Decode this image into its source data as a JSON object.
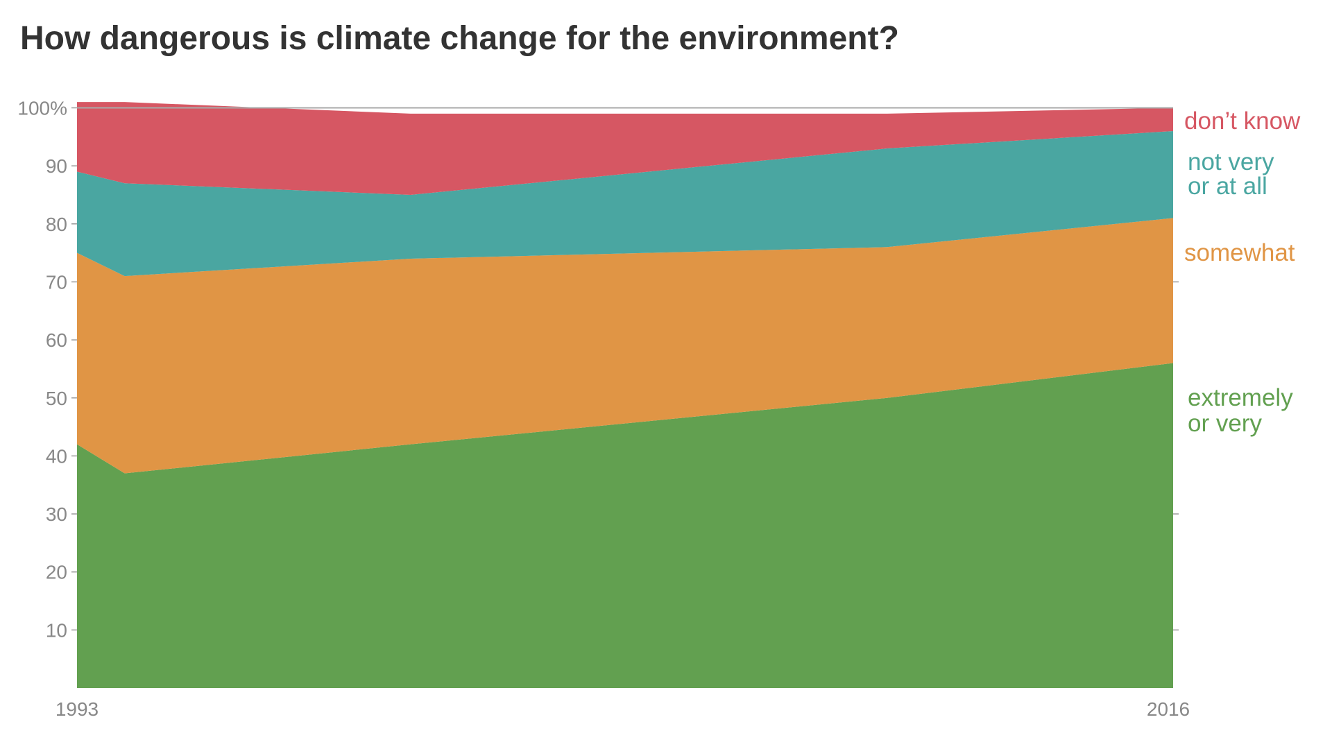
{
  "chart_data": {
    "type": "area",
    "stacked": true,
    "title": "How dangerous is climate change for the environment?",
    "xlabel": "",
    "ylabel": "",
    "x": [
      1993,
      1994,
      2000,
      2010,
      2016
    ],
    "x_tick_labels": [
      "1993",
      "2016"
    ],
    "ylim": [
      0,
      100
    ],
    "y_ticks": [
      10,
      20,
      30,
      40,
      50,
      60,
      70,
      80,
      90,
      100
    ],
    "y_tick_labels": [
      "10",
      "20",
      "30",
      "40",
      "50",
      "60",
      "70",
      "80",
      "90",
      "100%"
    ],
    "legend_placement": "right (inline labels)",
    "series": [
      {
        "name": "extremely or very",
        "label_lines": [
          "extremely",
          "or very"
        ],
        "color": "#62a050",
        "values": [
          42,
          37,
          42,
          50,
          56
        ]
      },
      {
        "name": "somewhat",
        "label_lines": [
          "somewhat"
        ],
        "color": "#e09545",
        "values": [
          33,
          34,
          32,
          26,
          25
        ]
      },
      {
        "name": "not very or at all",
        "label_lines": [
          "not very",
          "or at all"
        ],
        "color": "#4aa6a1",
        "values": [
          14,
          16,
          11,
          17,
          15
        ]
      },
      {
        "name": "don’t know",
        "label_lines": [
          "don’t know"
        ],
        "color": "#d65763",
        "values": [
          12,
          14,
          14,
          6,
          4
        ]
      }
    ]
  }
}
